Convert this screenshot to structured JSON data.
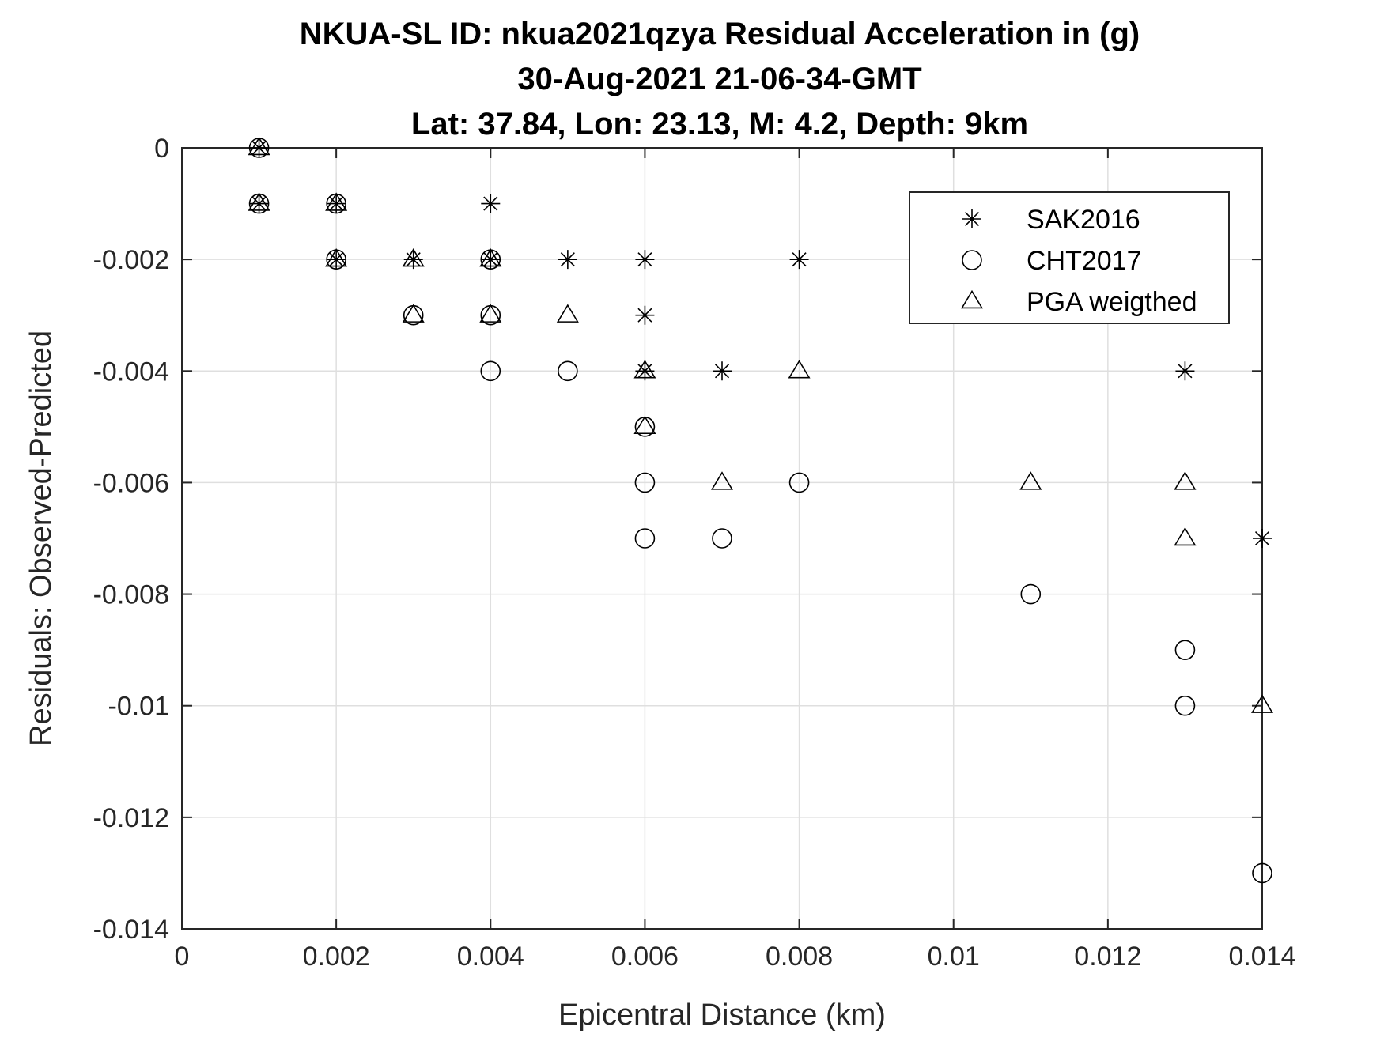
{
  "chart_data": {
    "type": "scatter",
    "title": [
      "NKUA-SL ID: nkua2021qzya Residual Acceleration in (g)",
      "30-Aug-2021 21-06-34-GMT",
      "Lat: 37.84, Lon: 23.13, M: 4.2, Depth: 9km"
    ],
    "xlabel": "Epicentral Distance (km)",
    "ylabel": "Residuals: Observed-Predicted",
    "xlim": [
      0,
      0.014
    ],
    "ylim": [
      -0.014,
      0
    ],
    "xticks": [
      0,
      0.002,
      0.004,
      0.006,
      0.008,
      0.01,
      0.012,
      0.014
    ],
    "xtick_labels": [
      "0",
      "0.002",
      "0.004",
      "0.006",
      "0.008",
      "0.01",
      "0.012",
      "0.014"
    ],
    "yticks": [
      0,
      -0.002,
      -0.004,
      -0.006,
      -0.008,
      -0.01,
      -0.012,
      -0.014
    ],
    "ytick_labels": [
      "0",
      "-0.002",
      "-0.004",
      "-0.006",
      "-0.008",
      "-0.01",
      "-0.012",
      "-0.014"
    ],
    "grid": true,
    "legend_position": "top-right",
    "series": [
      {
        "name": "SAK2016",
        "marker": "asterisk",
        "color": "#000000",
        "points": [
          [
            0.001,
            0
          ],
          [
            0.001,
            -0.001
          ],
          [
            0.002,
            -0.001
          ],
          [
            0.002,
            -0.002
          ],
          [
            0.003,
            -0.002
          ],
          [
            0.004,
            -0.001
          ],
          [
            0.004,
            -0.002
          ],
          [
            0.005,
            -0.002
          ],
          [
            0.006,
            -0.002
          ],
          [
            0.006,
            -0.003
          ],
          [
            0.006,
            -0.004
          ],
          [
            0.007,
            -0.004
          ],
          [
            0.008,
            -0.002
          ],
          [
            0.013,
            -0.004
          ],
          [
            0.014,
            -0.007
          ]
        ]
      },
      {
        "name": "CHT2017",
        "marker": "circle",
        "color": "#000000",
        "points": [
          [
            0.001,
            0
          ],
          [
            0.001,
            -0.001
          ],
          [
            0.002,
            -0.001
          ],
          [
            0.002,
            -0.002
          ],
          [
            0.003,
            -0.003
          ],
          [
            0.004,
            -0.002
          ],
          [
            0.004,
            -0.003
          ],
          [
            0.004,
            -0.004
          ],
          [
            0.005,
            -0.004
          ],
          [
            0.006,
            -0.005
          ],
          [
            0.006,
            -0.006
          ],
          [
            0.006,
            -0.007
          ],
          [
            0.007,
            -0.007
          ],
          [
            0.008,
            -0.006
          ],
          [
            0.011,
            -0.008
          ],
          [
            0.013,
            -0.009
          ],
          [
            0.013,
            -0.01
          ],
          [
            0.014,
            -0.013
          ]
        ]
      },
      {
        "name": "PGA weigthed",
        "marker": "triangle",
        "color": "#000000",
        "points": [
          [
            0.001,
            0
          ],
          [
            0.001,
            -0.001
          ],
          [
            0.002,
            -0.001
          ],
          [
            0.002,
            -0.002
          ],
          [
            0.003,
            -0.002
          ],
          [
            0.003,
            -0.003
          ],
          [
            0.004,
            -0.002
          ],
          [
            0.004,
            -0.003
          ],
          [
            0.005,
            -0.003
          ],
          [
            0.006,
            -0.004
          ],
          [
            0.006,
            -0.005
          ],
          [
            0.007,
            -0.006
          ],
          [
            0.008,
            -0.004
          ],
          [
            0.011,
            -0.006
          ],
          [
            0.013,
            -0.006
          ],
          [
            0.013,
            -0.007
          ],
          [
            0.014,
            -0.01
          ]
        ]
      }
    ]
  }
}
